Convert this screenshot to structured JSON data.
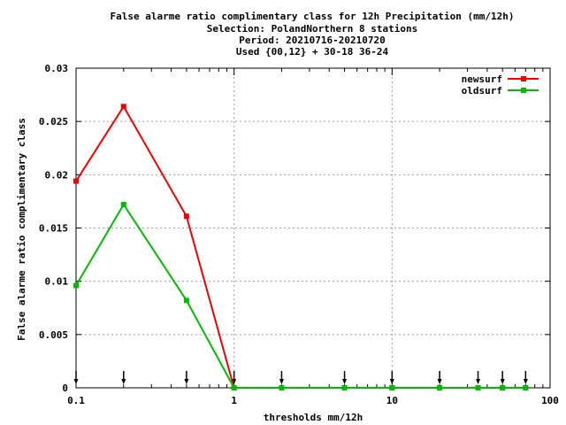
{
  "chart_data": {
    "type": "line",
    "title_lines": [
      "False alarme ratio complimentary class  for 12h Precipitation (mm/12h)",
      "Selection: PolandNorthern      8 stations",
      "Period: 20210716-20210720",
      "Used {00,12} + 30-18 36-24"
    ],
    "xlabel": "thresholds mm/12h",
    "ylabel": "False alarme ratio complimentary class",
    "x_scale": "log",
    "xlim": [
      0.1,
      100
    ],
    "ylim": [
      0,
      0.03
    ],
    "x_ticks": [
      0.1,
      1,
      10,
      100
    ],
    "x_tick_labels": [
      "0.1",
      "1",
      "10",
      "100"
    ],
    "y_ticks": [
      0,
      0.005,
      0.01,
      0.015,
      0.02,
      0.025,
      0.03
    ],
    "y_tick_labels": [
      "0",
      "0.005",
      "0.01",
      "0.015",
      "0.02",
      "0.025",
      "0.03"
    ],
    "grid": true,
    "legend_position": "top-right",
    "x": [
      0.1,
      0.2,
      0.5,
      1,
      2,
      5,
      10,
      20,
      35,
      50,
      70
    ],
    "series": [
      {
        "name": "newsurf",
        "color": "#ee0000",
        "values": [
          0.0194,
          0.0264,
          0.0161,
          0,
          0,
          0,
          0,
          0,
          0,
          0,
          0
        ]
      },
      {
        "name": "oldsurf",
        "color": "#00bb00",
        "values": [
          0.0096,
          0.0172,
          0.0082,
          0,
          0,
          0,
          0,
          0,
          0,
          0,
          0
        ]
      }
    ],
    "threshold_markers": [
      0.1,
      0.2,
      0.5,
      1,
      2,
      5,
      10,
      20,
      35,
      50,
      70
    ]
  }
}
